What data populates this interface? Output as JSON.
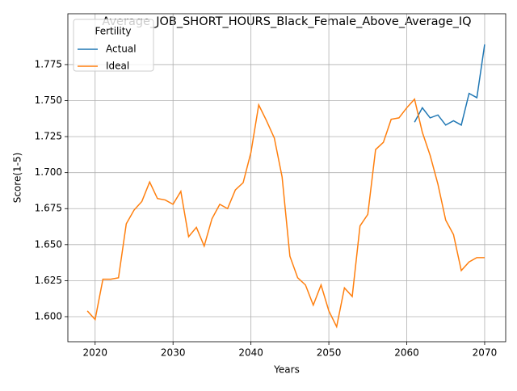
{
  "chart_data": {
    "type": "line",
    "title": "Average_JOB_SHORT_HOURS_Black_Female_Above_Average_IQ",
    "x_label": "Years",
    "y_label": "Score(1-5)",
    "legend_title": "Fertility",
    "legend": "upper left",
    "grid": true,
    "x": [
      2019,
      2020,
      2021,
      2022,
      2023,
      2024,
      2025,
      2026,
      2027,
      2028,
      2029,
      2030,
      2031,
      2032,
      2033,
      2034,
      2035,
      2036,
      2037,
      2038,
      2039,
      2040,
      2041,
      2042,
      2043,
      2044,
      2045,
      2046,
      2047,
      2048,
      2049,
      2050,
      2051,
      2052,
      2053,
      2054,
      2055,
      2056,
      2057,
      2058,
      2059,
      2060,
      2061,
      2062,
      2063,
      2064,
      2065,
      2066,
      2067,
      2068,
      2069,
      2070
    ],
    "series": [
      {
        "name": "Actual",
        "color": "#1f77b4",
        "values": [
          null,
          null,
          null,
          null,
          null,
          null,
          null,
          null,
          null,
          null,
          null,
          null,
          null,
          null,
          null,
          null,
          null,
          null,
          null,
          null,
          null,
          null,
          null,
          null,
          null,
          null,
          null,
          null,
          null,
          null,
          null,
          null,
          null,
          null,
          null,
          null,
          null,
          null,
          null,
          null,
          null,
          null,
          1.735,
          1.745,
          1.738,
          1.74,
          1.733,
          1.736,
          1.733,
          1.755,
          1.752,
          1.789
        ]
      },
      {
        "name": "Ideal",
        "color": "#ff7f0e",
        "values": [
          1.604,
          1.598,
          1.626,
          1.626,
          1.627,
          1.6645,
          1.674,
          1.68,
          1.6935,
          1.682,
          1.681,
          1.678,
          1.687,
          1.6555,
          1.662,
          1.649,
          1.668,
          1.678,
          1.675,
          1.688,
          1.693,
          1.714,
          1.747,
          1.736,
          1.724,
          1.697,
          1.642,
          1.627,
          1.622,
          1.608,
          1.622,
          1.604,
          1.593,
          1.62,
          1.614,
          1.663,
          1.671,
          1.716,
          1.721,
          1.737,
          1.738,
          1.745,
          1.751,
          1.728,
          1.712,
          1.692,
          1.667,
          1.657,
          1.632,
          1.638,
          1.641,
          1.641
        ]
      }
    ],
    "xlim": [
      2016.5,
      2072.7
    ],
    "ylim": [
      1.5826,
      1.8103
    ],
    "xticks": [
      2020,
      2030,
      2040,
      2050,
      2060,
      2070
    ],
    "yticks": [
      {
        "value": 1.6,
        "label": "1.600"
      },
      {
        "value": 1.625,
        "label": "1.625"
      },
      {
        "value": 1.65,
        "label": "1.650"
      },
      {
        "value": 1.675,
        "label": "1.675"
      },
      {
        "value": 1.7,
        "label": "1.700"
      },
      {
        "value": 1.725,
        "label": "1.725"
      },
      {
        "value": 1.75,
        "label": "1.750"
      },
      {
        "value": 1.775,
        "label": "1.775"
      }
    ]
  }
}
